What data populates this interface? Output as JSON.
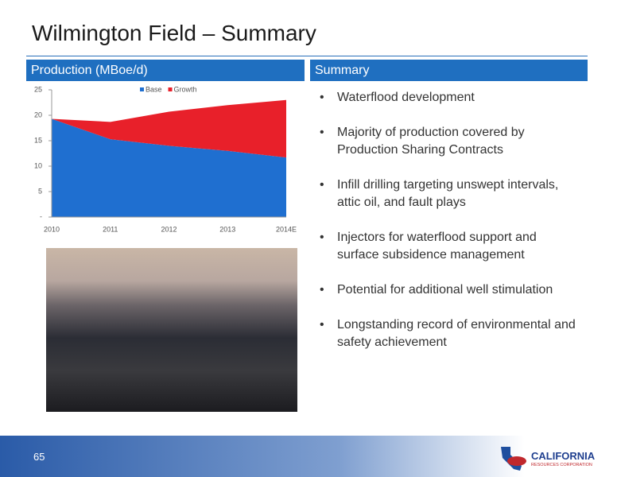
{
  "header": {
    "title": "Wilmington Field – Summary"
  },
  "left_panel": {
    "heading": "Production (MBoe/d)"
  },
  "right_panel": {
    "heading": "Summary",
    "bullets": [
      "Waterflood development",
      "Majority of production covered by Production Sharing Contracts",
      "Infill drilling targeting unswept intervals, attic oil, and fault plays",
      "Injectors for waterflood support and surface subsidence management",
      "Potential for additional well stimulation",
      "Longstanding record of environmental and safety achievement"
    ]
  },
  "footer": {
    "page_number": "65",
    "logo_name": "CALIFORNIA",
    "logo_sub": "RESOURCES CORPORATION"
  },
  "chart_data": {
    "type": "stacked-area",
    "categories": [
      "2010",
      "2011",
      "2012",
      "2013",
      "2014E"
    ],
    "series": [
      {
        "name": "Base",
        "color": "#1f6fd0",
        "values": [
          19.3,
          15.3,
          14,
          13,
          11.7
        ]
      },
      {
        "name": "Growth",
        "color": "#e8202a",
        "values": [
          0,
          3.4,
          6.7,
          9,
          11.3
        ]
      }
    ],
    "ylim": [
      0,
      25
    ],
    "yticks": [
      {
        "value": 0,
        "label": "-"
      },
      5,
      10,
      15,
      20,
      25
    ],
    "legend": "top"
  }
}
